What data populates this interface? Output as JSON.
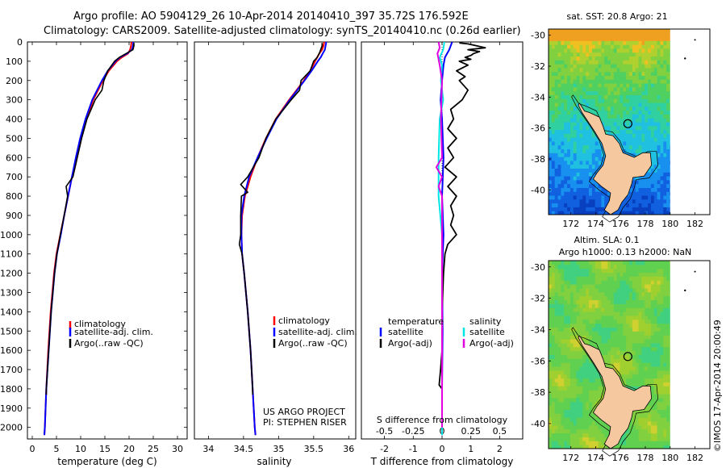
{
  "header": {
    "line1": "Argo profile: AO 5904129_26 10-Apr-2014 20140410_397 35.72S 176.592E",
    "line2": "Climatology: CARS2009. Satellite-adjusted climatology: synTS_20140410.nc (0.26d earlier)"
  },
  "colors": {
    "climatology": "#ff0000",
    "satellite": "#0000ff",
    "argo": "#000000",
    "salinity_satellite": "#00e5e5",
    "salinity_argo": "#e000e0",
    "land": "#f5c8a0"
  },
  "depth_axis": {
    "ticks": [
      0,
      100,
      200,
      300,
      400,
      500,
      600,
      700,
      800,
      900,
      1000,
      1100,
      1200,
      1300,
      1400,
      1500,
      1600,
      1700,
      1800,
      1900,
      2000
    ],
    "range": [
      0,
      2060
    ]
  },
  "chart_data": [
    {
      "type": "line",
      "name": "temperature",
      "xlabel": "temperature (deg C)",
      "xlim": [
        -1,
        32
      ],
      "xticks": [
        "0",
        "5",
        "10",
        "15",
        "20",
        "25",
        "30"
      ],
      "xtick_values": [
        0,
        5,
        10,
        15,
        20,
        25,
        30
      ],
      "legend": [
        "climatology",
        "satellite-adj. clim.",
        "Argo(..raw -QC)"
      ],
      "series": [
        {
          "name": "climatology",
          "depth": [
            0,
            20,
            40,
            60,
            80,
            100,
            150,
            200,
            300,
            400,
            500,
            600,
            700,
            800,
            900,
            1000,
            1100,
            1200,
            1400,
            1600,
            1800,
            2000,
            2040
          ],
          "values": [
            20.5,
            20.4,
            20.2,
            19.8,
            18.5,
            17.5,
            15.8,
            14.6,
            12.6,
            11.2,
            10.0,
            9.1,
            8.2,
            7.4,
            6.6,
            5.8,
            5.0,
            4.5,
            3.8,
            3.3,
            2.9,
            2.6,
            2.5
          ]
        },
        {
          "name": "satellite-adj. clim.",
          "depth": [
            0,
            20,
            40,
            60,
            80,
            100,
            150,
            200,
            300,
            400,
            500,
            600,
            700,
            800,
            900,
            1000,
            1100,
            1200,
            1400,
            1600,
            1800,
            2000,
            2040
          ],
          "values": [
            20.9,
            20.8,
            20.6,
            19.6,
            18.1,
            17.2,
            15.6,
            14.4,
            12.4,
            11.0,
            9.9,
            9.0,
            8.2,
            7.4,
            6.6,
            5.9,
            5.1,
            4.6,
            3.9,
            3.4,
            2.9,
            2.6,
            2.5
          ]
        },
        {
          "name": "Argo(..raw -QC)",
          "depth": [
            5,
            20,
            40,
            60,
            80,
            100,
            150,
            200,
            250,
            300,
            400,
            500,
            600,
            700,
            750,
            800,
            900,
            1000,
            1100,
            1200,
            1400,
            1600,
            1800,
            1830
          ],
          "values": [
            21.0,
            21.0,
            20.8,
            19.4,
            18.0,
            17.0,
            15.6,
            14.8,
            14.4,
            13.0,
            11.3,
            10.2,
            9.3,
            8.4,
            7.0,
            7.3,
            6.6,
            5.8,
            5.1,
            4.6,
            3.9,
            3.4,
            2.9,
            2.9
          ]
        }
      ]
    },
    {
      "type": "line",
      "name": "salinity",
      "xlabel": "salinity",
      "xlim": [
        33.8,
        36.1
      ],
      "xticks": [
        "34",
        "34.5",
        "35",
        "35.5",
        "36"
      ],
      "xtick_values": [
        34,
        34.5,
        35,
        35.5,
        36
      ],
      "legend": [
        "climatology",
        "satellite-adj. clim.",
        "Argo(..raw -QC)"
      ],
      "footer": [
        "US ARGO PROJECT",
        "PI: STEPHEN RISER"
      ],
      "series": [
        {
          "name": "climatology",
          "depth": [
            0,
            20,
            40,
            60,
            80,
            100,
            150,
            200,
            300,
            400,
            500,
            600,
            700,
            800,
            900,
            1000,
            1100,
            1200,
            1400,
            1600,
            1800,
            2000,
            2040
          ],
          "values": [
            35.65,
            35.64,
            35.62,
            35.58,
            35.55,
            35.52,
            35.45,
            35.36,
            35.15,
            34.96,
            34.82,
            34.7,
            34.6,
            34.52,
            34.48,
            34.47,
            34.48,
            34.51,
            34.56,
            34.6,
            34.63,
            34.66,
            34.67
          ]
        },
        {
          "name": "satellite-adj. clim.",
          "depth": [
            0,
            20,
            40,
            60,
            80,
            100,
            150,
            200,
            300,
            400,
            500,
            600,
            700,
            800,
            900,
            1000,
            1100,
            1200,
            1400,
            1600,
            1800,
            2000,
            2040
          ],
          "values": [
            35.68,
            35.67,
            35.66,
            35.63,
            35.6,
            35.56,
            35.47,
            35.37,
            35.16,
            34.97,
            34.83,
            34.7,
            34.58,
            34.51,
            34.47,
            34.47,
            34.48,
            34.51,
            34.56,
            34.6,
            34.63,
            34.66,
            34.67
          ]
        },
        {
          "name": "Argo(..raw -QC)",
          "depth": [
            5,
            20,
            40,
            60,
            80,
            100,
            150,
            200,
            250,
            300,
            400,
            500,
            600,
            700,
            740,
            780,
            800,
            900,
            1000,
            1050,
            1100,
            1200,
            1400,
            1600,
            1800,
            1830
          ],
          "values": [
            35.62,
            35.62,
            35.6,
            35.58,
            35.55,
            35.5,
            35.45,
            35.32,
            35.3,
            35.18,
            34.96,
            34.82,
            34.72,
            34.56,
            34.46,
            34.56,
            34.47,
            34.46,
            34.46,
            34.44,
            34.48,
            34.51,
            34.56,
            34.6,
            34.63,
            34.63
          ]
        }
      ]
    },
    {
      "type": "line",
      "name": "difference",
      "xlabel": "T difference from climatology",
      "xlabel_top": "S difference from climatology",
      "xlim": [
        -2.8,
        2.8
      ],
      "xticks_T": [
        "-2",
        "-1",
        "0",
        "1",
        "2"
      ],
      "xtick_values_T": [
        -2,
        -1,
        0,
        1,
        2
      ],
      "xticks_S": [
        "-0.5",
        "-0.25",
        "0",
        "0.25",
        "0.5"
      ],
      "xtick_values_S": [
        -0.5,
        -0.25,
        0,
        0.25,
        0.5
      ],
      "legend_temperature": {
        "title": "temperature",
        "items": [
          "satellite",
          "Argo(-adj)"
        ]
      },
      "legend_salinity": {
        "title": "salinity",
        "items": [
          "satellite",
          "Argo(-adj)"
        ]
      },
      "series": [
        {
          "name": "T satellite",
          "depth": [
            0,
            40,
            80,
            120,
            200,
            300,
            400,
            600,
            800,
            1000,
            1200,
            1500,
            1800,
            2000,
            2040
          ],
          "values": [
            0.35,
            0.25,
            0.1,
            0.05,
            0.0,
            -0.05,
            0.0,
            0.05,
            0.0,
            0.05,
            0.0,
            0.02,
            0.0,
            0.0,
            0.0
          ]
        },
        {
          "name": "T Argo(-adj)",
          "depth": [
            5,
            10,
            20,
            30,
            40,
            50,
            60,
            70,
            80,
            90,
            100,
            120,
            150,
            180,
            200,
            250,
            300,
            350,
            400,
            450,
            500,
            550,
            600,
            650,
            700,
            750,
            800,
            850,
            900,
            950,
            1000,
            1050,
            1100,
            1200,
            1400,
            1600,
            1700,
            1780,
            1800
          ],
          "values": [
            0.6,
            0.9,
            1.2,
            1.5,
            0.9,
            1.3,
            1.1,
            1.0,
            0.8,
            1.0,
            0.6,
            0.9,
            0.5,
            0.8,
            0.6,
            0.9,
            0.7,
            0.3,
            0.4,
            0.2,
            0.5,
            0.2,
            0.4,
            0.1,
            0.5,
            0.2,
            0.5,
            0.3,
            0.4,
            0.3,
            0.5,
            0.2,
            0.1,
            0.05,
            0.0,
            0.0,
            -0.05,
            -0.1,
            0.0
          ]
        },
        {
          "name": "S satellite",
          "depth": [
            0,
            40,
            80,
            120,
            200,
            300,
            400,
            600,
            800,
            1000,
            1200,
            1500,
            1800,
            2000,
            2040
          ],
          "values": [
            0.02,
            0.01,
            -0.02,
            0.0,
            -0.01,
            0.01,
            -0.02,
            -0.03,
            -0.03,
            0.0,
            0.0,
            0.0,
            0.0,
            0.0,
            0.0
          ]
        },
        {
          "name": "S Argo(-adj)",
          "depth": [
            0,
            30,
            60,
            90,
            120,
            200,
            400,
            600,
            650,
            700,
            750,
            800,
            900,
            1000,
            1100,
            1200,
            1500,
            1800,
            2000
          ],
          "values": [
            -0.03,
            -0.02,
            -0.04,
            -0.03,
            -0.02,
            0.0,
            -0.01,
            0.0,
            -0.05,
            0.0,
            -0.03,
            0.0,
            0.0,
            0.0,
            0.0,
            0.0,
            0.0,
            0.0,
            0.0
          ]
        }
      ]
    },
    {
      "type": "heatmap",
      "name": "sst-map",
      "title": "sat. SST: 20.8 Argo: 21",
      "xlim": [
        170.2,
        183.2
      ],
      "ylim": [
        -41.6,
        -29.6
      ],
      "xticks": [
        "172",
        "174",
        "176",
        "178",
        "180",
        "182"
      ],
      "xtick_values": [
        172,
        174,
        176,
        178,
        180,
        182
      ],
      "yticks": [
        "-30",
        "-32",
        "-34",
        "-36",
        "-38",
        "-40"
      ],
      "ytick_values": [
        -30,
        -32,
        -34,
        -36,
        -38,
        -40
      ],
      "float_position": [
        176.592,
        -35.72
      ]
    },
    {
      "type": "heatmap",
      "name": "sla-map",
      "title_line1": "Altim. SLA: 0.1",
      "title_line2": "Argo h1000: 0.13 h2000: NaN",
      "xlim": [
        170.2,
        183.2
      ],
      "ylim": [
        -41.6,
        -29.6
      ],
      "xticks": [
        "172",
        "174",
        "176",
        "178",
        "180",
        "182"
      ],
      "xtick_values": [
        172,
        174,
        176,
        178,
        180,
        182
      ],
      "yticks": [
        "-30",
        "-32",
        "-34",
        "-36",
        "-38",
        "-40"
      ],
      "ytick_values": [
        -30,
        -32,
        -34,
        -36,
        -38,
        -40
      ],
      "float_position": [
        176.592,
        -35.72
      ]
    }
  ],
  "side_caption": "©IMOS 17-Apr-2014 20:00:49"
}
